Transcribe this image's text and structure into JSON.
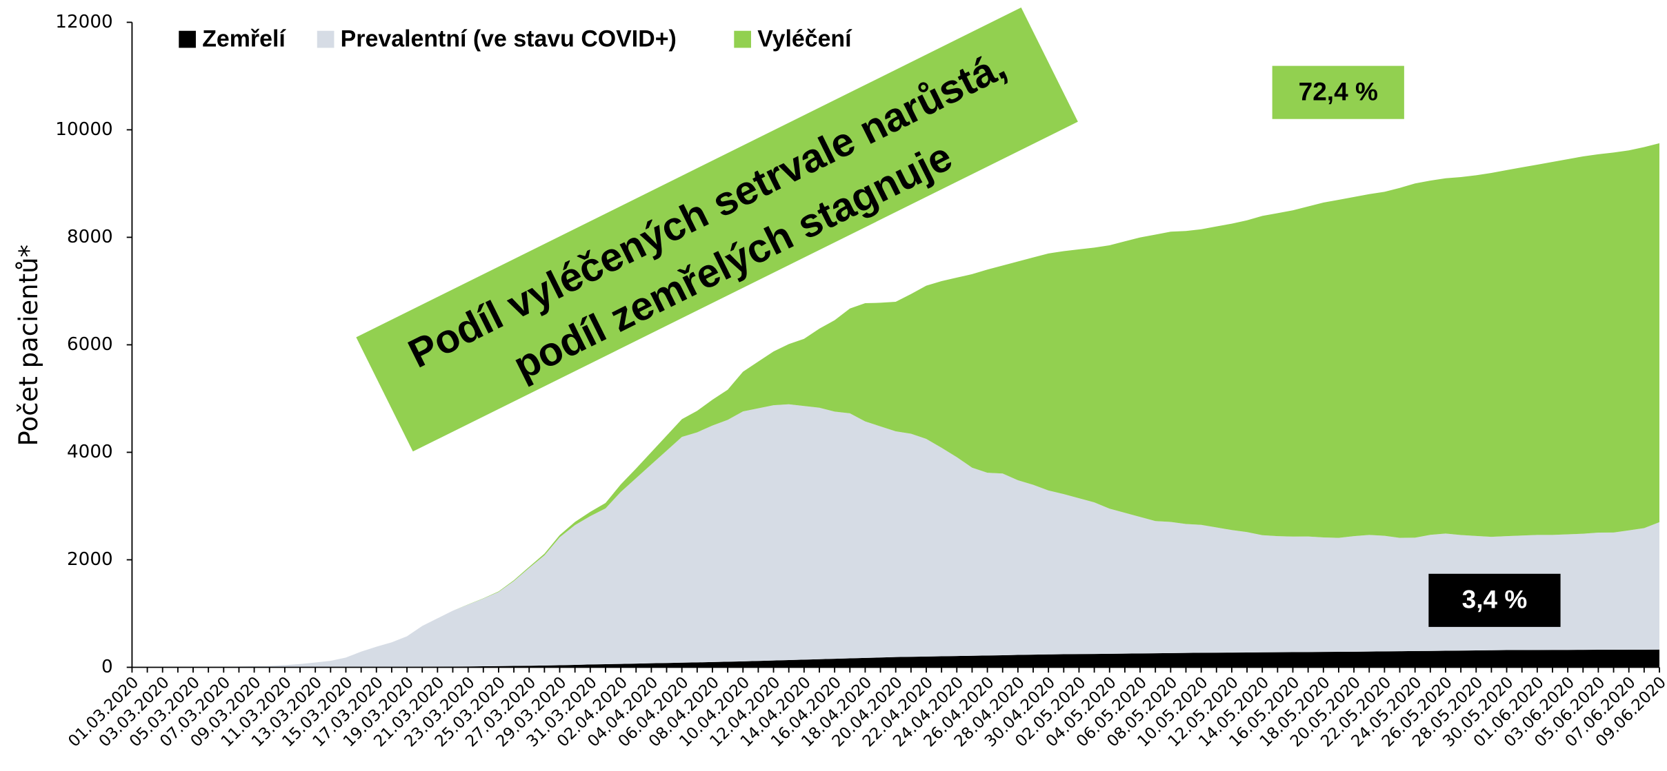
{
  "chart_data": {
    "type": "stacked_area",
    "y_axis_label": "Počet pacientů*",
    "annotation": [
      "Podíl vyléčených setrvale narůstá,",
      "podíl zemřelých stagnuje"
    ],
    "boxes": [
      {
        "label": "72,4 %",
        "color": "#92d050"
      },
      {
        "label": "3,4 %",
        "color": "#000000"
      }
    ],
    "legend": "top-left",
    "ylim": [
      0,
      12000
    ],
    "yticks": [
      0,
      2000,
      4000,
      6000,
      8000,
      10000,
      12000
    ],
    "grid": false,
    "categories": [
      "01.03.2020",
      null,
      "03.03.2020",
      null,
      "05.03.2020",
      null,
      "07.03.2020",
      null,
      "09.03.2020",
      null,
      "11.03.2020",
      null,
      "13.03.2020",
      null,
      "15.03.2020",
      null,
      "17.03.2020",
      null,
      "19.03.2020",
      null,
      "21.03.2020",
      null,
      "23.03.2020",
      null,
      "25.03.2020",
      null,
      "27.03.2020",
      null,
      "29.03.2020",
      null,
      "31.03.2020",
      null,
      "02.04.2020",
      null,
      "04.04.2020",
      null,
      "06.04.2020",
      null,
      "08.04.2020",
      null,
      "10.04.2020",
      null,
      "12.04.2020",
      null,
      "14.04.2020",
      null,
      "16.04.2020",
      null,
      "18.04.2020",
      null,
      "20.04.2020",
      null,
      "22.04.2020",
      null,
      "24.04.2020",
      null,
      "26.04.2020",
      null,
      "28.04.2020",
      null,
      "30.04.2020",
      null,
      "02.05.2020",
      null,
      "04.05.2020",
      null,
      "06.05.2020",
      null,
      "08.05.2020",
      null,
      "10.05.2020",
      null,
      "12.05.2020",
      null,
      "14.05.2020",
      null,
      "16.05.2020",
      null,
      "18.05.2020",
      null,
      "20.05.2020",
      null,
      "22.05.2020",
      null,
      "24.05.2020",
      null,
      "26.05.2020",
      null,
      "28.05.2020",
      null,
      "30.05.2020",
      null,
      "01.06.2020",
      null,
      "03.06.2020",
      null,
      "05.06.2020",
      null,
      "07.06.2020",
      null,
      "09.06.2020"
    ],
    "series": [
      {
        "name": "Zemřelí",
        "color": "#000000",
        "values": [
          0,
          0,
          0,
          0,
          0,
          0,
          0,
          0,
          0,
          0,
          0,
          0,
          0,
          0,
          1,
          2,
          3,
          5,
          7,
          9,
          11,
          13,
          16,
          19,
          22,
          25,
          29,
          33,
          39,
          45,
          52,
          57,
          63,
          69,
          75,
          80,
          86,
          92,
          98,
          104,
          110,
          118,
          126,
          134,
          142,
          150,
          158,
          166,
          174,
          182,
          190,
          195,
          200,
          205,
          210,
          215,
          220,
          225,
          230,
          235,
          240,
          243,
          246,
          249,
          252,
          255,
          258,
          261,
          264,
          267,
          270,
          272,
          274,
          276,
          278,
          280,
          282,
          284,
          286,
          288,
          290,
          293,
          296,
          299,
          302,
          305,
          308,
          311,
          314,
          317,
          320,
          321,
          322,
          323,
          324,
          325,
          326,
          327,
          328,
          329,
          330
        ]
      },
      {
        "name": "Prevalentní (ve stavu COVID+)",
        "color": "#d6dce5",
        "values": [
          0,
          0,
          2,
          3,
          5,
          7,
          10,
          15,
          20,
          25,
          40,
          60,
          90,
          120,
          180,
          290,
          380,
          460,
          570,
          760,
          900,
          1040,
          1150,
          1260,
          1380,
          1580,
          1820,
          2050,
          2380,
          2600,
          2760,
          2900,
          3200,
          3450,
          3700,
          3950,
          4200,
          4280,
          4400,
          4500,
          4650,
          4700,
          4750,
          4760,
          4720,
          4680,
          4600,
          4560,
          4400,
          4300,
          4200,
          4150,
          4050,
          3880,
          3700,
          3500,
          3400,
          3380,
          3250,
          3160,
          3050,
          2980,
          2900,
          2820,
          2700,
          2620,
          2540,
          2460,
          2440,
          2400,
          2380,
          2330,
          2280,
          2240,
          2180,
          2160,
          2150,
          2150,
          2130,
          2120,
          2150,
          2170,
          2150,
          2110,
          2110,
          2160,
          2180,
          2150,
          2130,
          2110,
          2120,
          2130,
          2140,
          2140,
          2150,
          2160,
          2180,
          2180,
          2220,
          2260,
          2370
        ]
      },
      {
        "name": "Vyléčení",
        "color": "#92d050",
        "values": [
          0,
          0,
          0,
          0,
          0,
          0,
          0,
          0,
          0,
          0,
          0,
          0,
          0,
          0,
          0,
          0,
          0,
          0,
          0,
          0,
          0,
          0,
          3,
          5,
          10,
          15,
          20,
          30,
          40,
          60,
          80,
          100,
          140,
          180,
          230,
          280,
          330,
          400,
          480,
          560,
          740,
          870,
          1000,
          1120,
          1250,
          1470,
          1700,
          1950,
          2200,
          2300,
          2410,
          2600,
          2850,
          3100,
          3340,
          3600,
          3780,
          3870,
          4070,
          4230,
          4410,
          4520,
          4630,
          4740,
          4900,
          5050,
          5200,
          5330,
          5400,
          5450,
          5500,
          5600,
          5700,
          5800,
          5940,
          6010,
          6070,
          6140,
          6230,
          6290,
          6310,
          6340,
          6400,
          6510,
          6590,
          6590,
          6610,
          6660,
          6710,
          6770,
          6810,
          6850,
          6890,
          6940,
          6980,
          7020,
          7040,
          7070,
          7070,
          7090,
          7050
        ]
      }
    ]
  }
}
